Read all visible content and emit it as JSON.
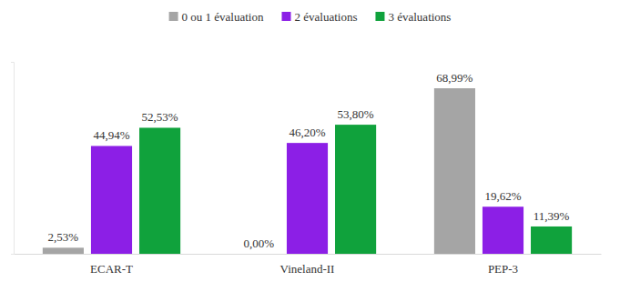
{
  "chart_data": {
    "type": "bar",
    "categories": [
      "ECAR-T",
      "Vineland-II",
      "PEP-3"
    ],
    "series": [
      {
        "name": "0 ou 1 évaluation",
        "color": "#a5a5a5",
        "values": [
          2.53,
          0,
          68.99
        ],
        "value_labels": [
          "2,53%",
          "0,00%",
          "68,99%"
        ]
      },
      {
        "name": "2 évaluations",
        "color": "#8c1fe6",
        "values": [
          44.94,
          46.2,
          19.62
        ],
        "value_labels": [
          "44,94%",
          "46,20%",
          "19,62%"
        ]
      },
      {
        "name": "3 évaluations",
        "color": "#10a23c",
        "values": [
          52.53,
          53.8,
          11.39
        ],
        "value_labels": [
          "52,53%",
          "53,80%",
          "11,39%"
        ]
      }
    ],
    "ylim": [
      0,
      80
    ],
    "yticks": [
      0,
      80
    ],
    "data_labels": true,
    "legend": "top",
    "tick_labels": "x",
    "grid": false
  }
}
